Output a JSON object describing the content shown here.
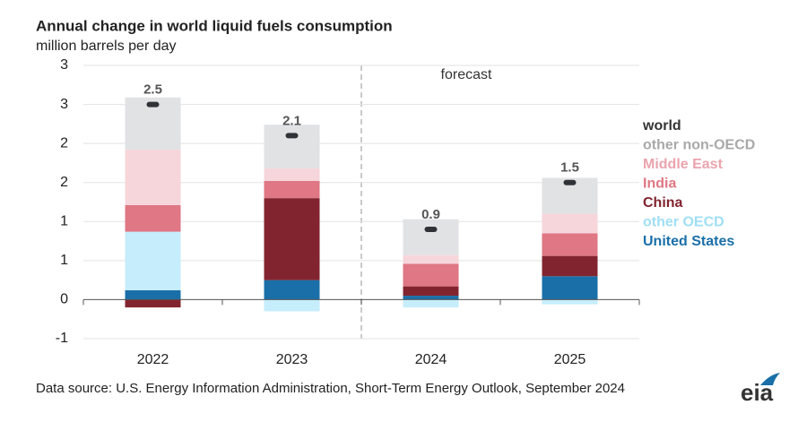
{
  "chart_data": {
    "type": "stacked-bar",
    "title": "Annual change in world liquid fuels consumption",
    "subtitle": "million barrels per day",
    "annotation": "forecast",
    "source": "Data source: U.S. Energy Information Administration, Short-Term Energy Outlook, September 2024",
    "logo": "eia",
    "categories": [
      "2022",
      "2023",
      "2024",
      "2025"
    ],
    "ylim": [
      -0.5,
      3.0
    ],
    "yticks": [
      3,
      {
        "value": 2.5,
        "label": "3"
      },
      2,
      {
        "value": 1.5,
        "label": "2"
      },
      1,
      {
        "value": 0.5,
        "label": "1"
      },
      0,
      {
        "value": -0.5,
        "label": "-1"
      }
    ],
    "grid": true,
    "legend": "right",
    "series": [
      {
        "name": "United States",
        "color": "#1a6fa8",
        "label_color": "#1a6fa8",
        "values": [
          0.12,
          0.25,
          0.05,
          0.3
        ]
      },
      {
        "name": "other OECD",
        "color": "#c6edfb",
        "label_color": "#9fdff4",
        "values": [
          0.75,
          -0.15,
          -0.1,
          -0.06
        ]
      },
      {
        "name": "China",
        "color": "#82242f",
        "label_color": "#82242f",
        "values": [
          -0.1,
          1.05,
          0.12,
          0.26
        ]
      },
      {
        "name": "India",
        "color": "#df7784",
        "label_color": "#df7784",
        "values": [
          0.34,
          0.22,
          0.29,
          0.29
        ]
      },
      {
        "name": "Middle East",
        "color": "#f6d6db",
        "label_color": "#eba4ae",
        "values": [
          0.71,
          0.16,
          0.11,
          0.25
        ]
      },
      {
        "name": "other non-OECD",
        "color": "#e1e2e4",
        "label_color": "#a9a9a9",
        "values": [
          0.67,
          0.56,
          0.46,
          0.46
        ]
      }
    ],
    "total": {
      "name": "world",
      "color": "#2f3337",
      "label_color": "#333333",
      "values": [
        2.5,
        2.1,
        0.9,
        1.5
      ]
    }
  }
}
